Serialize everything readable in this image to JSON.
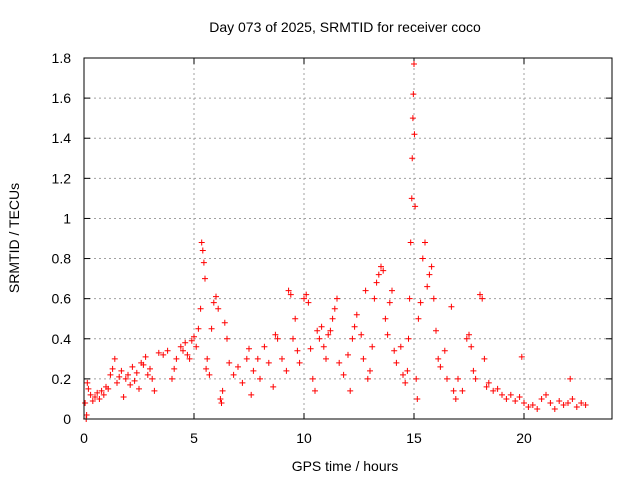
{
  "chart_data": {
    "type": "scatter",
    "title": "Day 073 of 2025, SRMTID for receiver coco",
    "xlabel": "GPS time / hours",
    "ylabel": "SRMTID / TECUs",
    "xlim": [
      0,
      24
    ],
    "ylim": [
      0,
      1.8
    ],
    "xticks": [
      0,
      5,
      10,
      15,
      20
    ],
    "xtick_labels": [
      "0",
      "5",
      "10",
      "15",
      "20"
    ],
    "yticks": [
      0,
      0.2,
      0.4,
      0.6,
      0.8,
      1,
      1.2,
      1.4,
      1.6,
      1.8
    ],
    "ytick_labels": [
      "0",
      "0.2",
      "0.4",
      "0.6",
      "0.8",
      "1",
      "1.2",
      "1.4",
      "1.6",
      "1.8"
    ],
    "grid": true,
    "marker": "+",
    "marker_color": "#ff0000",
    "series": [
      {
        "name": "SRMTID",
        "points": [
          [
            0.05,
            0.08
          ],
          [
            0.1,
            0.0
          ],
          [
            0.12,
            0.02
          ],
          [
            0.15,
            0.18
          ],
          [
            0.2,
            0.15
          ],
          [
            0.3,
            0.12
          ],
          [
            0.4,
            0.09
          ],
          [
            0.5,
            0.11
          ],
          [
            0.6,
            0.13
          ],
          [
            0.7,
            0.1
          ],
          [
            0.8,
            0.14
          ],
          [
            0.9,
            0.12
          ],
          [
            1.0,
            0.16
          ],
          [
            1.1,
            0.15
          ],
          [
            1.2,
            0.22
          ],
          [
            1.3,
            0.25
          ],
          [
            1.4,
            0.3
          ],
          [
            1.5,
            0.18
          ],
          [
            1.6,
            0.21
          ],
          [
            1.7,
            0.24
          ],
          [
            1.8,
            0.11
          ],
          [
            1.9,
            0.2
          ],
          [
            2.0,
            0.22
          ],
          [
            2.1,
            0.17
          ],
          [
            2.2,
            0.26
          ],
          [
            2.3,
            0.19
          ],
          [
            2.4,
            0.23
          ],
          [
            2.5,
            0.15
          ],
          [
            2.6,
            0.28
          ],
          [
            2.7,
            0.27
          ],
          [
            2.8,
            0.31
          ],
          [
            2.9,
            0.22
          ],
          [
            3.0,
            0.25
          ],
          [
            3.1,
            0.2
          ],
          [
            3.2,
            0.14
          ],
          [
            3.4,
            0.33
          ],
          [
            3.6,
            0.32
          ],
          [
            3.8,
            0.34
          ],
          [
            4.0,
            0.2
          ],
          [
            4.1,
            0.25
          ],
          [
            4.2,
            0.3
          ],
          [
            4.4,
            0.36
          ],
          [
            4.5,
            0.34
          ],
          [
            4.6,
            0.38
          ],
          [
            4.7,
            0.32
          ],
          [
            4.8,
            0.3
          ],
          [
            4.9,
            0.39
          ],
          [
            5.0,
            0.41
          ],
          [
            5.1,
            0.36
          ],
          [
            5.2,
            0.45
          ],
          [
            5.3,
            0.55
          ],
          [
            5.35,
            0.88
          ],
          [
            5.4,
            0.84
          ],
          [
            5.45,
            0.78
          ],
          [
            5.5,
            0.7
          ],
          [
            5.55,
            0.25
          ],
          [
            5.6,
            0.3
          ],
          [
            5.7,
            0.22
          ],
          [
            5.8,
            0.45
          ],
          [
            5.9,
            0.58
          ],
          [
            6.0,
            0.61
          ],
          [
            6.1,
            0.55
          ],
          [
            6.2,
            0.1
          ],
          [
            6.25,
            0.08
          ],
          [
            6.3,
            0.14
          ],
          [
            6.4,
            0.48
          ],
          [
            6.5,
            0.4
          ],
          [
            6.6,
            0.28
          ],
          [
            6.8,
            0.22
          ],
          [
            7.0,
            0.26
          ],
          [
            7.2,
            0.18
          ],
          [
            7.4,
            0.3
          ],
          [
            7.5,
            0.35
          ],
          [
            7.6,
            0.12
          ],
          [
            7.7,
            0.24
          ],
          [
            7.9,
            0.3
          ],
          [
            8.0,
            0.2
          ],
          [
            8.2,
            0.36
          ],
          [
            8.4,
            0.28
          ],
          [
            8.6,
            0.16
          ],
          [
            8.7,
            0.42
          ],
          [
            8.8,
            0.4
          ],
          [
            9.0,
            0.3
          ],
          [
            9.2,
            0.24
          ],
          [
            9.3,
            0.64
          ],
          [
            9.4,
            0.62
          ],
          [
            9.5,
            0.4
          ],
          [
            9.6,
            0.5
          ],
          [
            9.7,
            0.34
          ],
          [
            9.8,
            0.28
          ],
          [
            10.0,
            0.6
          ],
          [
            10.1,
            0.62
          ],
          [
            10.2,
            0.58
          ],
          [
            10.3,
            0.35
          ],
          [
            10.4,
            0.2
          ],
          [
            10.5,
            0.14
          ],
          [
            10.6,
            0.44
          ],
          [
            10.7,
            0.4
          ],
          [
            10.8,
            0.46
          ],
          [
            10.9,
            0.36
          ],
          [
            11.0,
            0.3
          ],
          [
            11.1,
            0.42
          ],
          [
            11.2,
            0.44
          ],
          [
            11.3,
            0.5
          ],
          [
            11.4,
            0.55
          ],
          [
            11.5,
            0.6
          ],
          [
            11.6,
            0.28
          ],
          [
            11.8,
            0.22
          ],
          [
            12.0,
            0.32
          ],
          [
            12.1,
            0.14
          ],
          [
            12.2,
            0.4
          ],
          [
            12.3,
            0.46
          ],
          [
            12.4,
            0.52
          ],
          [
            12.6,
            0.42
          ],
          [
            12.7,
            0.3
          ],
          [
            12.8,
            0.64
          ],
          [
            12.9,
            0.2
          ],
          [
            13.0,
            0.24
          ],
          [
            13.1,
            0.36
          ],
          [
            13.2,
            0.6
          ],
          [
            13.3,
            0.68
          ],
          [
            13.4,
            0.72
          ],
          [
            13.5,
            0.76
          ],
          [
            13.6,
            0.74
          ],
          [
            13.7,
            0.5
          ],
          [
            13.8,
            0.42
          ],
          [
            13.9,
            0.58
          ],
          [
            14.0,
            0.64
          ],
          [
            14.1,
            0.34
          ],
          [
            14.2,
            0.28
          ],
          [
            14.4,
            0.36
          ],
          [
            14.5,
            0.22
          ],
          [
            14.6,
            0.18
          ],
          [
            14.7,
            0.24
          ],
          [
            14.75,
            0.4
          ],
          [
            14.8,
            0.6
          ],
          [
            14.85,
            0.88
          ],
          [
            14.9,
            1.1
          ],
          [
            14.92,
            1.3
          ],
          [
            14.95,
            1.5
          ],
          [
            14.97,
            1.62
          ],
          [
            15.0,
            1.77
          ],
          [
            15.02,
            1.42
          ],
          [
            15.05,
            1.06
          ],
          [
            15.1,
            0.2
          ],
          [
            15.15,
            0.1
          ],
          [
            15.2,
            0.5
          ],
          [
            15.3,
            0.58
          ],
          [
            15.4,
            0.8
          ],
          [
            15.5,
            0.88
          ],
          [
            15.6,
            0.66
          ],
          [
            15.7,
            0.72
          ],
          [
            15.8,
            0.76
          ],
          [
            15.9,
            0.6
          ],
          [
            16.0,
            0.44
          ],
          [
            16.1,
            0.3
          ],
          [
            16.2,
            0.26
          ],
          [
            16.4,
            0.34
          ],
          [
            16.5,
            0.2
          ],
          [
            16.7,
            0.56
          ],
          [
            16.8,
            0.14
          ],
          [
            16.9,
            0.1
          ],
          [
            17.0,
            0.2
          ],
          [
            17.2,
            0.14
          ],
          [
            17.4,
            0.4
          ],
          [
            17.5,
            0.42
          ],
          [
            17.6,
            0.36
          ],
          [
            17.7,
            0.24
          ],
          [
            17.8,
            0.2
          ],
          [
            18.0,
            0.62
          ],
          [
            18.1,
            0.6
          ],
          [
            18.2,
            0.3
          ],
          [
            18.3,
            0.16
          ],
          [
            18.4,
            0.18
          ],
          [
            18.6,
            0.14
          ],
          [
            18.8,
            0.15
          ],
          [
            19.0,
            0.12
          ],
          [
            19.2,
            0.1
          ],
          [
            19.4,
            0.12
          ],
          [
            19.6,
            0.09
          ],
          [
            19.8,
            0.11
          ],
          [
            19.9,
            0.31
          ],
          [
            20.0,
            0.08
          ],
          [
            20.2,
            0.06
          ],
          [
            20.4,
            0.07
          ],
          [
            20.6,
            0.05
          ],
          [
            20.8,
            0.1
          ],
          [
            21.0,
            0.12
          ],
          [
            21.2,
            0.08
          ],
          [
            21.4,
            0.05
          ],
          [
            21.6,
            0.09
          ],
          [
            21.8,
            0.07
          ],
          [
            22.0,
            0.08
          ],
          [
            22.1,
            0.2
          ],
          [
            22.2,
            0.1
          ],
          [
            22.4,
            0.06
          ],
          [
            22.6,
            0.08
          ],
          [
            22.8,
            0.07
          ]
        ]
      }
    ]
  }
}
